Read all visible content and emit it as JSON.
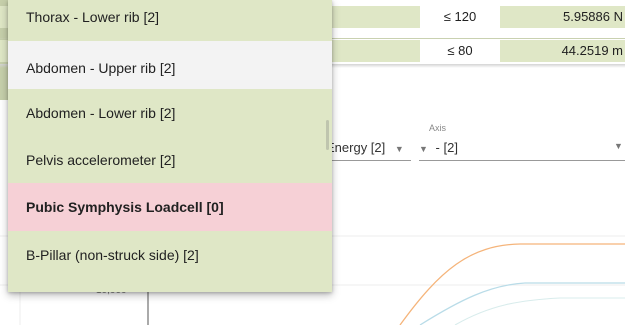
{
  "table": {
    "rows": [
      {
        "limit": "≤ 120",
        "value": "5.95886 N"
      },
      {
        "limit": "≤ 80",
        "value": "44.2519 m"
      }
    ]
  },
  "selectors": {
    "energy_value": "Energy [2]",
    "axis_label": "Axis",
    "axis_value": "- [2]"
  },
  "chart": {
    "y_tick": "10,000"
  },
  "dropdown": {
    "options": [
      {
        "label": "Thorax - Lower rib [2]"
      },
      {
        "label": "Abdomen - Upper rib [2]"
      },
      {
        "label": "Abdomen - Lower rib [2]"
      },
      {
        "label": "Pelvis accelerometer [2]"
      },
      {
        "label": "Pubic Symphysis Loadcell [0]",
        "status": "zero-count"
      },
      {
        "label": "B-Pillar (non-struck side) [2]"
      }
    ],
    "highlight_color": "#f6d0d6",
    "option_color": "#dfe7c6",
    "hover_color": "#f3f3f3"
  },
  "colors": {
    "series_orange": "#f5b47a",
    "series_blue": "#b9dce8"
  }
}
